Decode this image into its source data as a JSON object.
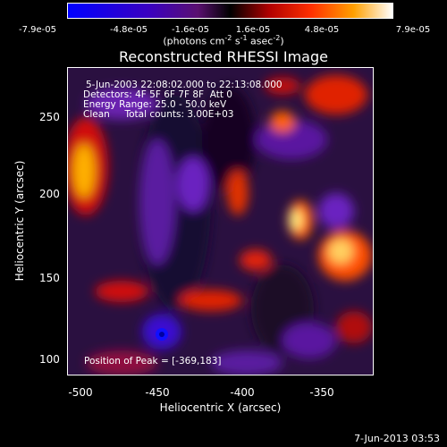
{
  "colorbar": {
    "ticks": [
      "-7.9e-05",
      "-4.8e-05",
      "-1.6e-05",
      "1.6e-05",
      "4.8e-05",
      "7.9e-05"
    ],
    "units_prefix": "(photons cm",
    "units_exp1": "-2",
    "units_mid": " s",
    "units_exp2": "-1",
    "units_mid2": " asec",
    "units_exp3": "-2",
    "units_suffix": ")"
  },
  "image": {
    "title": "Reconstructed RHESSI Image",
    "time_range": "5-Jun-2003 22:08:02.000 to 22:13:08.000",
    "detectors": "Detectors: 4F 5F 6F 7F 8F  Att 0",
    "energy": "Energy Range: 25.0 - 50.0 keV",
    "algorithm": "Clean     Total counts: 3.00E+03",
    "peak": "Position of Peak = [-369,183]"
  },
  "axes": {
    "xlabel": "Heliocentric X (arcsec)",
    "ylabel": "Heliocentric Y (arcsec)",
    "xticks": [
      "-500",
      "-450",
      "-400",
      "-350"
    ],
    "yticks": [
      "250",
      "200",
      "150",
      "100"
    ]
  },
  "footer": {
    "date": "7-Jun-2013 03:53"
  }
}
